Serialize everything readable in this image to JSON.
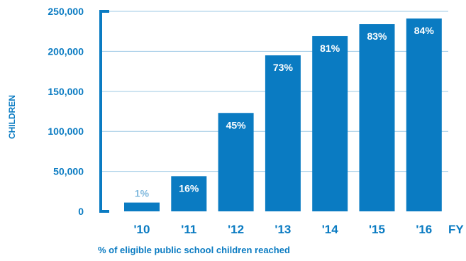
{
  "chart_data": {
    "type": "bar",
    "categories": [
      "'10",
      "'11",
      "'12",
      "'13",
      "'14",
      "'15",
      "'16"
    ],
    "values": [
      11000,
      44000,
      123000,
      195000,
      219000,
      234000,
      241000
    ],
    "data_labels": [
      "1%",
      "16%",
      "45%",
      "73%",
      "81%",
      "83%",
      "84%"
    ],
    "ylabel": "CHILDREN",
    "xlabel": "FY",
    "ylim": [
      0,
      250000
    ],
    "yticks": [
      0,
      50000,
      100000,
      150000,
      200000,
      250000
    ],
    "ytick_labels": [
      "0",
      "50,000",
      "100,000",
      "150,000",
      "200,000",
      "250,000"
    ],
    "grid": true,
    "footnote": "% of eligible public school children reached",
    "colors": {
      "bar": "#0a7bc2",
      "text": "#0a7bc2",
      "label_inside": "#ffffff",
      "label_outside": "#7fb8dd",
      "grid": "#9cc8e4"
    }
  }
}
